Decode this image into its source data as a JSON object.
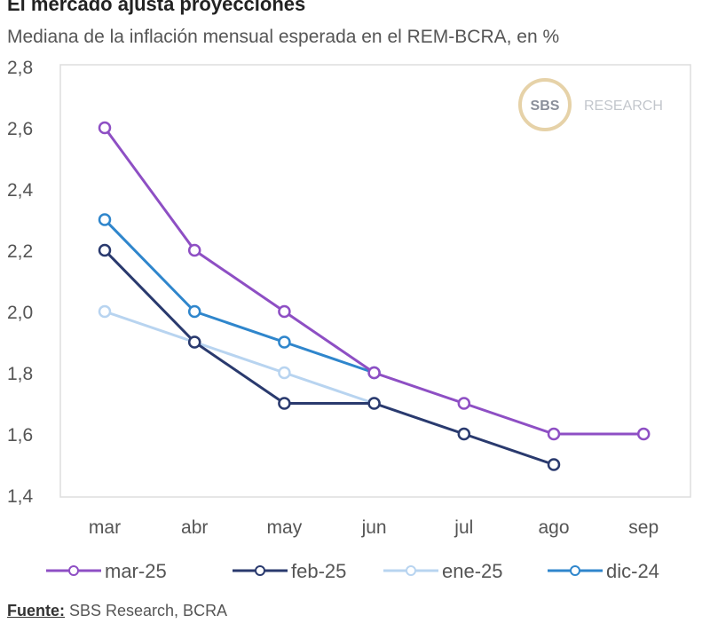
{
  "chart_data": {
    "type": "line",
    "title": "El mercado ajusta proyecciones",
    "subtitle": "Mediana de la inflación mensual esperada en el REM-BCRA, en %",
    "categories": [
      "mar",
      "abr",
      "may",
      "jun",
      "jul",
      "ago",
      "sep"
    ],
    "y_ticks": [
      "1,4",
      "1,6",
      "1,8",
      "2,0",
      "2,2",
      "2,4",
      "2,6",
      "2,8"
    ],
    "ylim": [
      1.4,
      2.8
    ],
    "grid": false,
    "legend_position": "bottom",
    "series": [
      {
        "name": "mar-25",
        "color": "#8e4fc4",
        "values": [
          2.6,
          2.2,
          2.0,
          1.8,
          1.7,
          1.6,
          1.6
        ]
      },
      {
        "name": "feb-25",
        "color": "#2a3a6e",
        "values": [
          2.2,
          1.9,
          1.7,
          1.7,
          1.6,
          1.5,
          null
        ]
      },
      {
        "name": "ene-25",
        "color": "#b8d4f0",
        "values": [
          2.0,
          1.9,
          1.8,
          1.7,
          1.6,
          null,
          null
        ]
      },
      {
        "name": "dic-24",
        "color": "#2f86cc",
        "values": [
          2.3,
          2.0,
          1.9,
          1.8,
          null,
          null,
          null
        ]
      }
    ]
  },
  "logo": {
    "mark": "SBS",
    "text": "RESEARCH"
  },
  "source": {
    "label": "Fuente:",
    "text": " SBS Research, BCRA"
  }
}
